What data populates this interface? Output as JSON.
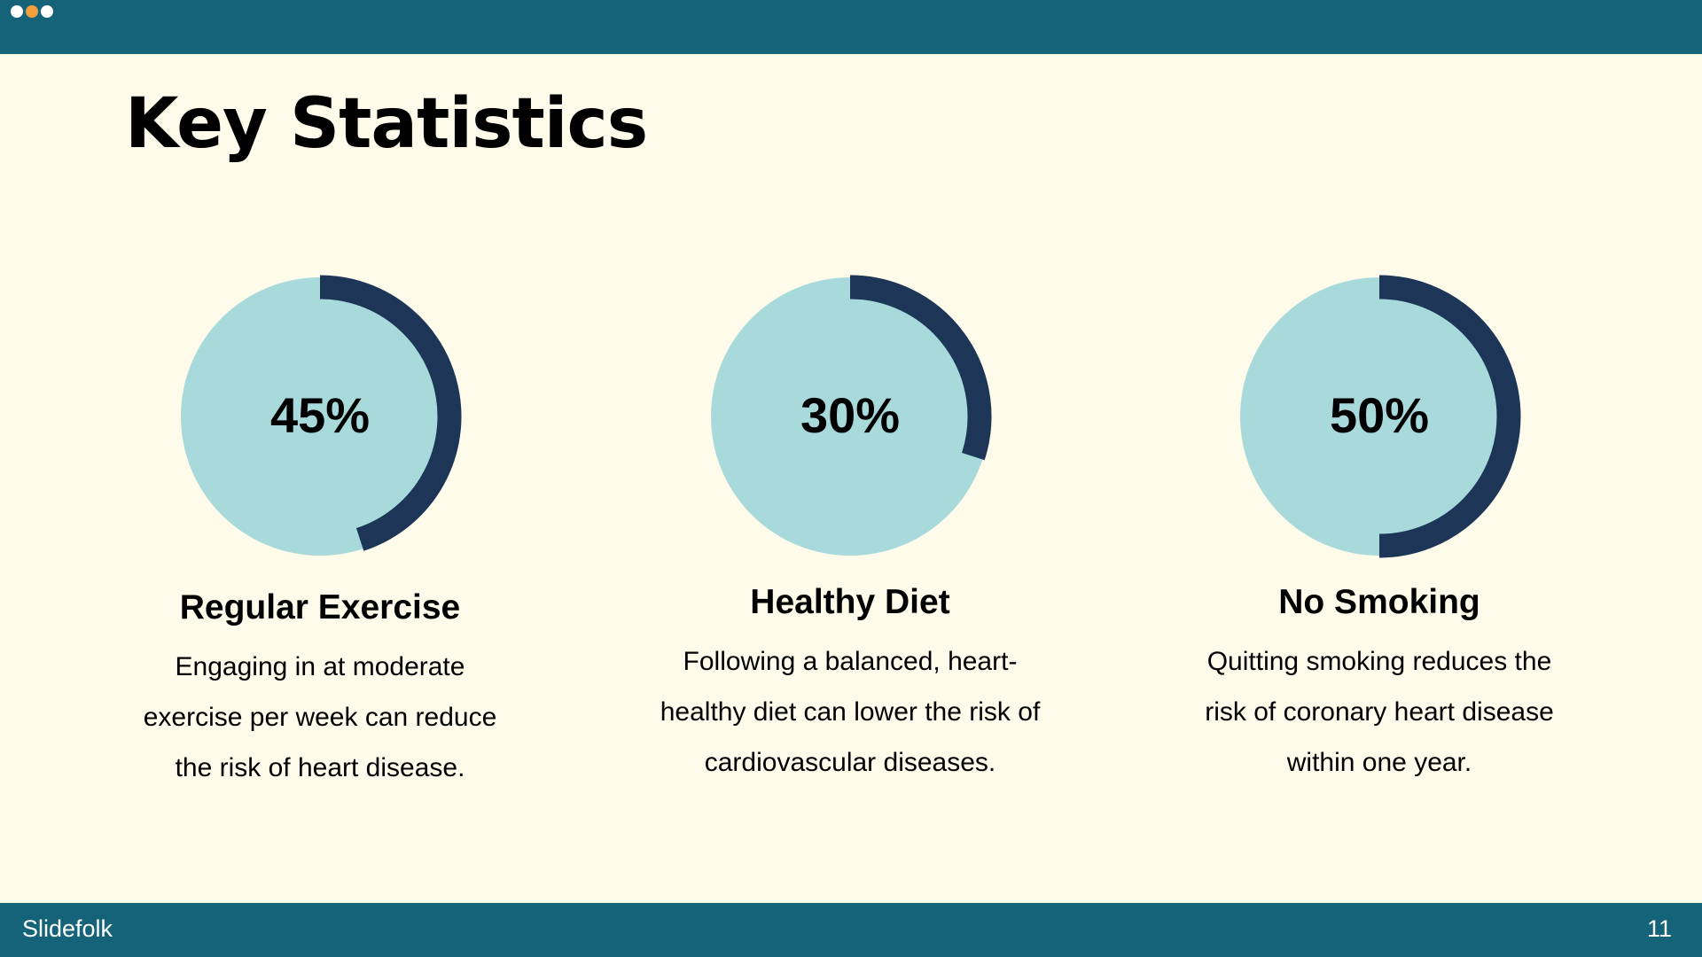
{
  "window": {
    "controls": [
      {
        "name": "dot-1",
        "color": "#ffffff"
      },
      {
        "name": "dot-2",
        "color": "#f4a03a"
      },
      {
        "name": "dot-3",
        "color": "#ffffff"
      }
    ]
  },
  "slide": {
    "title": "Key Statistics",
    "colors": {
      "bar": "#156378",
      "background": "#fefbea",
      "ring_track": "#a8dadc",
      "ring_fill": "#1d3557"
    },
    "stats": [
      {
        "percent": 45,
        "value_label": "45%",
        "label": "Regular Exercise",
        "description": "Engaging in at moderate exercise per week can reduce the risk of heart disease."
      },
      {
        "percent": 30,
        "value_label": "30%",
        "label": "Healthy Diet",
        "description": "Following a balanced, heart-healthy diet can lower the risk of cardiovascular diseases."
      },
      {
        "percent": 50,
        "value_label": "50%",
        "label": "No Smoking",
        "description": "Quitting smoking reduces the risk of coronary heart disease within one year."
      }
    ]
  },
  "footer": {
    "brand": "Slidefolk",
    "page_number": "11"
  }
}
